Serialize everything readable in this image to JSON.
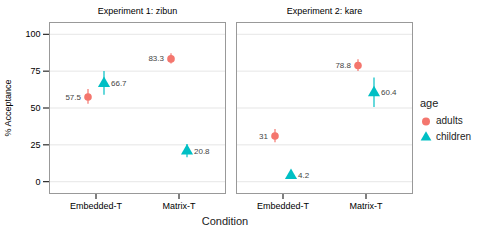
{
  "chart_data": [
    {
      "type": "scatter",
      "title": "Experiment 1: zibun",
      "categories": [
        "Embedded-T",
        "Matrix-T"
      ],
      "series": [
        {
          "name": "adults",
          "color": "#F4766E",
          "marker": "circle",
          "values": [
            57.5,
            83.3
          ],
          "error_low": [
            5.0,
            3.5
          ],
          "error_high": [
            5.0,
            3.5
          ]
        },
        {
          "name": "children",
          "color": "#00BFC4",
          "marker": "triangle",
          "values": [
            66.7,
            20.8
          ],
          "error_low": [
            8.0,
            4.5
          ],
          "error_high": [
            8.0,
            4.5
          ]
        }
      ],
      "ylabel": "% Acceptance",
      "xlabel": "Condition",
      "ylim": [
        -8,
        108
      ],
      "yticks": [
        0,
        25,
        50,
        75,
        100
      ],
      "grid": true,
      "data_labels": true
    },
    {
      "type": "scatter",
      "title": "Experiment 2: kare",
      "categories": [
        "Embedded-T",
        "Matrix-T"
      ],
      "series": [
        {
          "name": "adults",
          "color": "#F4766E",
          "marker": "circle",
          "values": [
            31,
            78.8
          ],
          "error_low": [
            4.5,
            4.0
          ],
          "error_high": [
            4.5,
            4.0
          ]
        },
        {
          "name": "children",
          "color": "#00BFC4",
          "marker": "triangle",
          "values": [
            4.2,
            60.4
          ],
          "error_low": [
            2.5,
            10.0
          ],
          "error_high": [
            2.5,
            10.0
          ]
        }
      ],
      "ylim": [
        -8,
        108
      ],
      "yticks": [
        0,
        25,
        50,
        75,
        100
      ],
      "grid": true,
      "data_labels": true,
      "legend": "right",
      "legend_title": "age"
    }
  ]
}
